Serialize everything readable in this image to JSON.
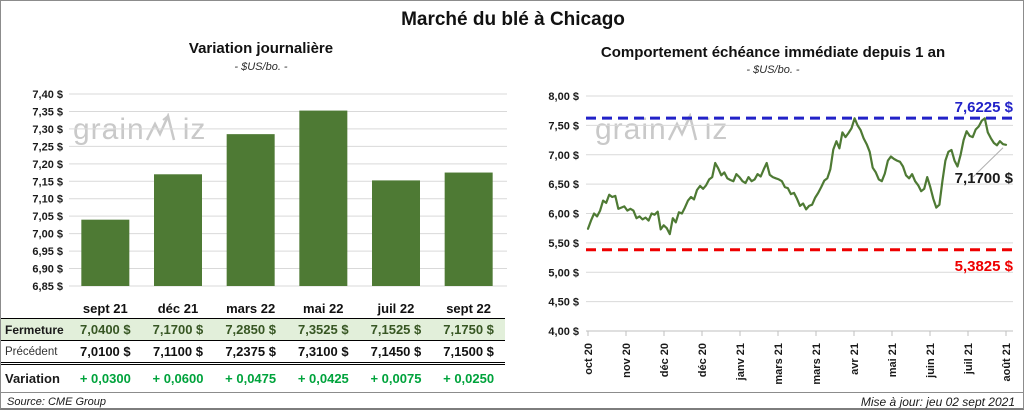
{
  "header": {
    "title": "Marché du blé à Chicago"
  },
  "watermark": {
    "part1": "grain",
    "part2": "iz"
  },
  "footer": {
    "source": "Source: CME Group",
    "updated": "Mise à jour: jeu 02 sept 2021"
  },
  "colors": {
    "bar_green": "#4e7a34",
    "line_green": "#4e7a34",
    "grid": "#d9d9d9",
    "axis": "#bfbfbf",
    "max_blue": "#2222c8",
    "min_red": "#ee0000",
    "variation_green": "#00a33c",
    "fermeture_bg": "#e2efda",
    "fermeture_text": "#375623",
    "watermark_gray": "#c9c9c9"
  },
  "table": {
    "columns": [
      "sept 21",
      "déc 21",
      "mars 22",
      "mai 22",
      "juil 22",
      "sept 22"
    ],
    "rows": [
      {
        "label": "Fermeture",
        "values": [
          "7,0400 $",
          "7,1700 $",
          "7,2850 $",
          "7,3525 $",
          "7,1525 $",
          "7,1750 $"
        ]
      },
      {
        "label": "Précédent",
        "values": [
          "7,0100 $",
          "7,1100 $",
          "7,2375 $",
          "7,3100 $",
          "7,1450 $",
          "7,1500 $"
        ]
      },
      {
        "label": "Variation",
        "values": [
          "+ 0,0300",
          "+ 0,0600",
          "+ 0,0475",
          "+ 0,0425",
          "+ 0,0075",
          "+ 0,0250"
        ]
      }
    ]
  },
  "chart_data": [
    {
      "type": "bar",
      "title": "Variation journalière",
      "subtitle": "- $US/bo. -",
      "categories": [
        "sept 21",
        "déc 21",
        "mars 22",
        "mai 22",
        "juil 22",
        "sept 22"
      ],
      "values": [
        7.04,
        7.17,
        7.285,
        7.3525,
        7.1525,
        7.175
      ],
      "ylim": [
        6.85,
        7.4
      ],
      "ytick_step": 0.05,
      "ytick_labels": [
        "7,40 $",
        "7,35 $",
        "7,30 $",
        "7,25 $",
        "7,20 $",
        "7,15 $",
        "7,10 $",
        "7,05 $",
        "7,00 $",
        "6,95 $",
        "6,90 $",
        "6,85 $"
      ],
      "grid": true,
      "legend": "none"
    },
    {
      "type": "line",
      "title": "Comportement échéance immédiate depuis 1 an",
      "subtitle": "- $US/bo. -",
      "x_labels": [
        "oct 20",
        "nov 20",
        "déc 20",
        "déc 20",
        "janv 21",
        "mars 21",
        "mars 21",
        "avr 21",
        "mai 21",
        "juin 21",
        "juil 21",
        "août 21"
      ],
      "ylim": [
        4.0,
        8.0
      ],
      "ytick_step": 0.5,
      "ytick_labels": [
        "8,00 $",
        "7,50 $",
        "7,00 $",
        "6,50 $",
        "6,00 $",
        "5,50 $",
        "5,00 $",
        "4,50 $",
        "4,00 $"
      ],
      "grid": true,
      "legend": "none",
      "max_line": {
        "value": 7.6225,
        "label": "7,6225 $"
      },
      "min_line": {
        "value": 5.3825,
        "label": "5,3825 $"
      },
      "last_value_label": "7,1700 $",
      "values": [
        5.74,
        5.88,
        6.0,
        5.95,
        6.05,
        6.22,
        6.18,
        6.32,
        6.28,
        6.3,
        6.08,
        6.1,
        6.12,
        6.05,
        6.08,
        6.05,
        5.92,
        5.95,
        5.9,
        5.93,
        5.88,
        6.0,
        5.98,
        6.03,
        5.73,
        5.8,
        5.75,
        5.65,
        5.92,
        5.85,
        6.02,
        6.0,
        6.1,
        6.22,
        6.28,
        6.24,
        6.4,
        6.47,
        6.42,
        6.48,
        6.58,
        6.62,
        6.86,
        6.77,
        6.65,
        6.7,
        6.6,
        6.57,
        6.55,
        6.67,
        6.62,
        6.55,
        6.52,
        6.62,
        6.55,
        6.58,
        6.67,
        6.63,
        6.75,
        6.86,
        6.66,
        6.62,
        6.6,
        6.58,
        6.55,
        6.45,
        6.43,
        6.33,
        6.35,
        6.25,
        6.13,
        6.17,
        6.07,
        6.13,
        6.15,
        6.27,
        6.35,
        6.45,
        6.56,
        6.6,
        6.75,
        7.09,
        7.23,
        7.11,
        7.38,
        7.3,
        7.37,
        7.45,
        7.62,
        7.5,
        7.42,
        7.28,
        7.18,
        7.05,
        6.78,
        6.7,
        6.58,
        6.55,
        6.68,
        6.9,
        6.97,
        6.93,
        6.9,
        6.88,
        6.8,
        6.65,
        6.6,
        6.67,
        6.55,
        6.48,
        6.38,
        6.42,
        6.62,
        6.45,
        6.25,
        6.1,
        6.15,
        6.55,
        6.9,
        7.05,
        7.08,
        6.9,
        6.8,
        7.0,
        7.25,
        7.4,
        7.32,
        7.3,
        7.43,
        7.48,
        7.58,
        7.62,
        7.38,
        7.28,
        7.2,
        7.16,
        7.23,
        7.18,
        7.17
      ]
    }
  ]
}
